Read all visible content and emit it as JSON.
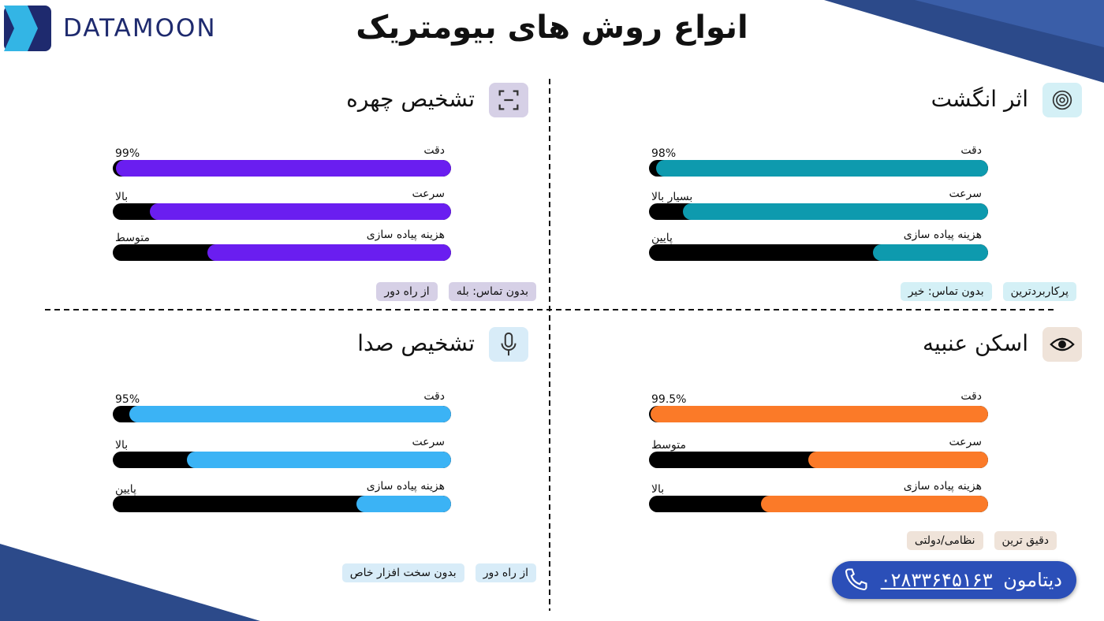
{
  "header": {
    "logo": "DATAMOON",
    "title": "انواع روش های بیومتریک"
  },
  "panels": [
    {
      "title": "اثر انگشت",
      "color": "#0e9aae",
      "metrics": [
        {
          "name": "دقت",
          "label": "98%",
          "value": 98
        },
        {
          "name": "سرعت",
          "label": "بسیار بالا",
          "value": 90
        },
        {
          "name": "هزینه پیاده سازی",
          "label": "پایین",
          "value": 34
        }
      ],
      "tags": [
        "پرکاربردترین",
        "بدون تماس: خیر"
      ]
    },
    {
      "title": "تشخیص چهره",
      "color": "#6a1ef0",
      "metrics": [
        {
          "name": "دقت",
          "label": "99%",
          "value": 99
        },
        {
          "name": "سرعت",
          "label": "بالا",
          "value": 89
        },
        {
          "name": "هزینه پیاده سازی",
          "label": "متوسط",
          "value": 72
        }
      ],
      "tags": [
        "بدون تماس: بله",
        "از راه دور"
      ]
    },
    {
      "title": "اسکن عنبیه",
      "color": "#fb7a28",
      "metrics": [
        {
          "name": "دقت",
          "label": "99.5%",
          "value": 99.5
        },
        {
          "name": "سرعت",
          "label": "متوسط",
          "value": 53
        },
        {
          "name": "هزینه پیاده سازی",
          "label": "بالا",
          "value": 67
        }
      ],
      "tags": [
        "دقیق ترین",
        "نظامی/دولتی"
      ]
    },
    {
      "title": "تشخیص صدا",
      "color": "#3bb3f5",
      "metrics": [
        {
          "name": "دقت",
          "label": "95%",
          "value": 95
        },
        {
          "name": "سرعت",
          "label": "بالا",
          "value": 78
        },
        {
          "name": "هزینه پیاده سازی",
          "label": "پایین",
          "value": 28
        }
      ],
      "tags": [
        "از راه دور",
        "بدون سخت افزار خاص"
      ]
    }
  ],
  "contact": {
    "name": "دیتامون",
    "phone": "۰۲۸۳۳۶۴۵۱۶۳"
  }
}
